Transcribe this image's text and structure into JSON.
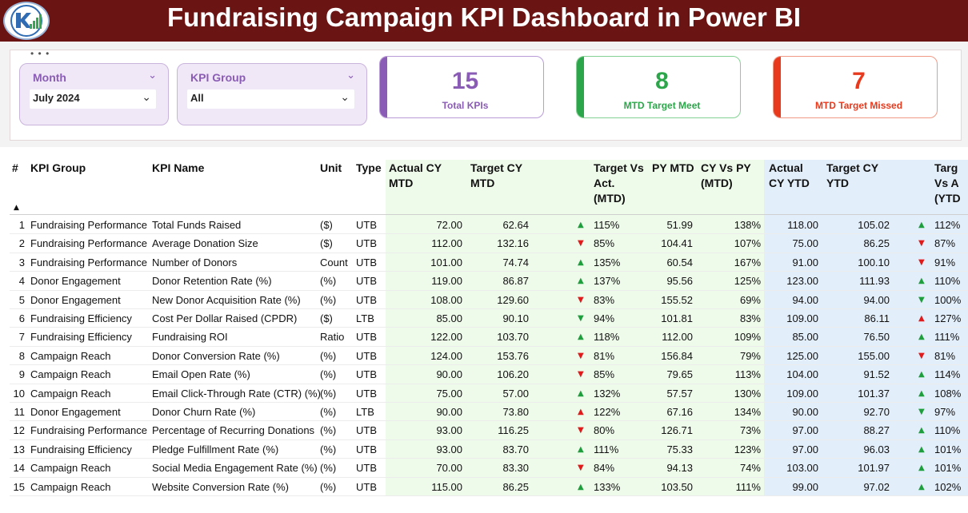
{
  "header": {
    "title": "Fundraising Campaign KPI Dashboard in Power BI"
  },
  "colors": {
    "header_bg": "#6b1414",
    "purple": "#8a5cb5",
    "green": "#2ca64a",
    "red": "#e8391c",
    "up": "#1e9e3c",
    "down": "#e01b1b",
    "mtd_band": "#eefaea",
    "ytd_band": "#e3eefb"
  },
  "filters": {
    "month": {
      "label": "Month",
      "value": "July 2024"
    },
    "kpi_group": {
      "label": "KPI Group",
      "value": "All"
    }
  },
  "cards": [
    {
      "value": "15",
      "label": "Total KPIs",
      "color": "#8a5cb5"
    },
    {
      "value": "8",
      "label": "MTD Target Meet",
      "color": "#2ca64a"
    },
    {
      "value": "7",
      "label": "MTD Target Missed",
      "color": "#e8391c"
    }
  ],
  "table": {
    "headers": {
      "num": "#",
      "group": "KPI Group",
      "name": "KPI Name",
      "unit": "Unit",
      "type": "Type",
      "act_mtd": [
        "Actual CY",
        "MTD"
      ],
      "tgt_mtd": [
        "Target CY",
        "MTD"
      ],
      "tva_mtd": [
        "Target Vs",
        "Act.",
        "(MTD)"
      ],
      "py_mtd": [
        "PY MTD"
      ],
      "cyvpy_mtd": [
        "CY Vs PY",
        "(MTD)"
      ],
      "act_ytd": [
        "Actual",
        "CY YTD"
      ],
      "tgt_ytd": [
        "Target CY",
        "YTD"
      ],
      "tva_ytd": [
        "Targ",
        "Vs A",
        "(YTD"
      ]
    },
    "rows": [
      {
        "n": "1",
        "group": "Fundraising Performance",
        "name": "Total Funds Raised",
        "unit": "($)",
        "type": "UTB",
        "act_mtd": "72.00",
        "tgt_mtd": "62.64",
        "mtd_dir": "up",
        "mtd_icon": "▲",
        "tva_mtd": "115%",
        "py_mtd": "51.99",
        "cyvpy": "138%",
        "act_ytd": "118.00",
        "tgt_ytd": "105.02",
        "ytd_dir": "up",
        "ytd_icon": "▲",
        "tva_ytd": "112%"
      },
      {
        "n": "2",
        "group": "Fundraising Performance",
        "name": "Average Donation Size",
        "unit": "($)",
        "type": "UTB",
        "act_mtd": "112.00",
        "tgt_mtd": "132.16",
        "mtd_dir": "down",
        "mtd_icon": "▼",
        "tva_mtd": "85%",
        "py_mtd": "104.41",
        "cyvpy": "107%",
        "act_ytd": "75.00",
        "tgt_ytd": "86.25",
        "ytd_dir": "down",
        "ytd_icon": "▼",
        "tva_ytd": "87%"
      },
      {
        "n": "3",
        "group": "Fundraising Performance",
        "name": "Number of Donors",
        "unit": "Count",
        "type": "UTB",
        "act_mtd": "101.00",
        "tgt_mtd": "74.74",
        "mtd_dir": "up",
        "mtd_icon": "▲",
        "tva_mtd": "135%",
        "py_mtd": "60.54",
        "cyvpy": "167%",
        "act_ytd": "91.00",
        "tgt_ytd": "100.10",
        "ytd_dir": "down",
        "ytd_icon": "▼",
        "tva_ytd": "91%"
      },
      {
        "n": "4",
        "group": "Donor Engagement",
        "name": "Donor Retention Rate (%)",
        "unit": "(%)",
        "type": "UTB",
        "act_mtd": "119.00",
        "tgt_mtd": "86.87",
        "mtd_dir": "up",
        "mtd_icon": "▲",
        "tva_mtd": "137%",
        "py_mtd": "95.56",
        "cyvpy": "125%",
        "act_ytd": "123.00",
        "tgt_ytd": "111.93",
        "ytd_dir": "up",
        "ytd_icon": "▲",
        "tva_ytd": "110%"
      },
      {
        "n": "5",
        "group": "Donor Engagement",
        "name": "New Donor Acquisition Rate (%)",
        "unit": "(%)",
        "type": "UTB",
        "act_mtd": "108.00",
        "tgt_mtd": "129.60",
        "mtd_dir": "down",
        "mtd_icon": "▼",
        "tva_mtd": "83%",
        "py_mtd": "155.52",
        "cyvpy": "69%",
        "act_ytd": "94.00",
        "tgt_ytd": "94.00",
        "ytd_dir": "up",
        "ytd_icon": "▼",
        "tva_ytd": "100%"
      },
      {
        "n": "6",
        "group": "Fundraising Efficiency",
        "name": "Cost Per Dollar Raised (CPDR)",
        "unit": "($)",
        "type": "LTB",
        "act_mtd": "85.00",
        "tgt_mtd": "90.10",
        "mtd_dir": "up",
        "mtd_icon": "▼",
        "tva_mtd": "94%",
        "py_mtd": "101.81",
        "cyvpy": "83%",
        "act_ytd": "109.00",
        "tgt_ytd": "86.11",
        "ytd_dir": "down",
        "ytd_icon": "▲",
        "tva_ytd": "127%"
      },
      {
        "n": "7",
        "group": "Fundraising Efficiency",
        "name": "Fundraising ROI",
        "unit": "Ratio",
        "type": "UTB",
        "act_mtd": "122.00",
        "tgt_mtd": "103.70",
        "mtd_dir": "up",
        "mtd_icon": "▲",
        "tva_mtd": "118%",
        "py_mtd": "112.00",
        "cyvpy": "109%",
        "act_ytd": "85.00",
        "tgt_ytd": "76.50",
        "ytd_dir": "up",
        "ytd_icon": "▲",
        "tva_ytd": "111%"
      },
      {
        "n": "8",
        "group": "Campaign Reach",
        "name": "Donor Conversion Rate (%)",
        "unit": "(%)",
        "type": "UTB",
        "act_mtd": "124.00",
        "tgt_mtd": "153.76",
        "mtd_dir": "down",
        "mtd_icon": "▼",
        "tva_mtd": "81%",
        "py_mtd": "156.84",
        "cyvpy": "79%",
        "act_ytd": "125.00",
        "tgt_ytd": "155.00",
        "ytd_dir": "down",
        "ytd_icon": "▼",
        "tva_ytd": "81%"
      },
      {
        "n": "9",
        "group": "Campaign Reach",
        "name": "Email Open Rate (%)",
        "unit": "(%)",
        "type": "UTB",
        "act_mtd": "90.00",
        "tgt_mtd": "106.20",
        "mtd_dir": "down",
        "mtd_icon": "▼",
        "tva_mtd": "85%",
        "py_mtd": "79.65",
        "cyvpy": "113%",
        "act_ytd": "104.00",
        "tgt_ytd": "91.52",
        "ytd_dir": "up",
        "ytd_icon": "▲",
        "tva_ytd": "114%"
      },
      {
        "n": "10",
        "group": "Campaign Reach",
        "name": "Email Click-Through Rate (CTR) (%)",
        "unit": "(%)",
        "type": "UTB",
        "act_mtd": "75.00",
        "tgt_mtd": "57.00",
        "mtd_dir": "up",
        "mtd_icon": "▲",
        "tva_mtd": "132%",
        "py_mtd": "57.57",
        "cyvpy": "130%",
        "act_ytd": "109.00",
        "tgt_ytd": "101.37",
        "ytd_dir": "up",
        "ytd_icon": "▲",
        "tva_ytd": "108%"
      },
      {
        "n": "11",
        "group": "Donor Engagement",
        "name": "Donor Churn Rate (%)",
        "unit": "(%)",
        "type": "LTB",
        "act_mtd": "90.00",
        "tgt_mtd": "73.80",
        "mtd_dir": "down",
        "mtd_icon": "▲",
        "tva_mtd": "122%",
        "py_mtd": "67.16",
        "cyvpy": "134%",
        "act_ytd": "90.00",
        "tgt_ytd": "92.70",
        "ytd_dir": "up",
        "ytd_icon": "▼",
        "tva_ytd": "97%"
      },
      {
        "n": "12",
        "group": "Fundraising Performance",
        "name": "Percentage of Recurring Donations",
        "unit": "(%)",
        "type": "UTB",
        "act_mtd": "93.00",
        "tgt_mtd": "116.25",
        "mtd_dir": "down",
        "mtd_icon": "▼",
        "tva_mtd": "80%",
        "py_mtd": "126.71",
        "cyvpy": "73%",
        "act_ytd": "97.00",
        "tgt_ytd": "88.27",
        "ytd_dir": "up",
        "ytd_icon": "▲",
        "tva_ytd": "110%"
      },
      {
        "n": "13",
        "group": "Fundraising Efficiency",
        "name": "Pledge Fulfillment Rate (%)",
        "unit": "(%)",
        "type": "UTB",
        "act_mtd": "93.00",
        "tgt_mtd": "83.70",
        "mtd_dir": "up",
        "mtd_icon": "▲",
        "tva_mtd": "111%",
        "py_mtd": "75.33",
        "cyvpy": "123%",
        "act_ytd": "97.00",
        "tgt_ytd": "96.03",
        "ytd_dir": "up",
        "ytd_icon": "▲",
        "tva_ytd": "101%"
      },
      {
        "n": "14",
        "group": "Campaign Reach",
        "name": "Social Media Engagement Rate (%)",
        "unit": "(%)",
        "type": "UTB",
        "act_mtd": "70.00",
        "tgt_mtd": "83.30",
        "mtd_dir": "down",
        "mtd_icon": "▼",
        "tva_mtd": "84%",
        "py_mtd": "94.13",
        "cyvpy": "74%",
        "act_ytd": "103.00",
        "tgt_ytd": "101.97",
        "ytd_dir": "up",
        "ytd_icon": "▲",
        "tva_ytd": "101%"
      },
      {
        "n": "15",
        "group": "Campaign Reach",
        "name": "Website Conversion Rate (%)",
        "unit": "(%)",
        "type": "UTB",
        "act_mtd": "115.00",
        "tgt_mtd": "86.25",
        "mtd_dir": "up",
        "mtd_icon": "▲",
        "tva_mtd": "133%",
        "py_mtd": "103.50",
        "cyvpy": "111%",
        "act_ytd": "99.00",
        "tgt_ytd": "97.02",
        "ytd_dir": "up",
        "ytd_icon": "▲",
        "tva_ytd": "102%"
      }
    ]
  }
}
